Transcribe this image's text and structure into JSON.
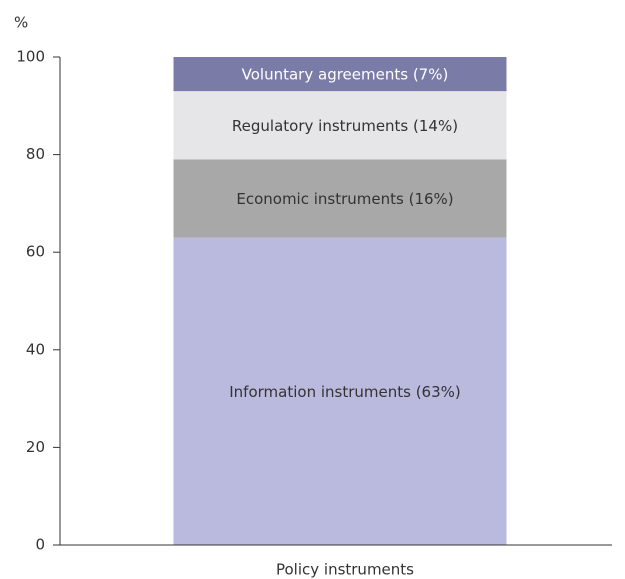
{
  "chart_data": {
    "type": "stacked_bar",
    "y_label": "%",
    "categories": [
      "Policy instruments"
    ],
    "series": [
      {
        "color": "#babade",
        "values": [
          63
        ],
        "value_labels": [
          "Information instruments (63%)"
        ],
        "label_color": "#333333"
      },
      {
        "color": "#a8a8a8",
        "values": [
          16
        ],
        "value_labels": [
          "Economic instruments (16%)"
        ],
        "label_color": "#333333"
      },
      {
        "color": "#e6e6e8",
        "values": [
          14
        ],
        "value_labels": [
          "Regulatory instruments (14%)"
        ],
        "label_color": "#333333"
      },
      {
        "color": "#7b7ba8",
        "values": [
          7
        ],
        "value_labels": [
          "Voluntary agreements (7%)"
        ],
        "label_color": "#ffffff"
      }
    ],
    "ylim": [
      0,
      100
    ],
    "yticks": [
      0,
      20,
      40,
      60,
      80,
      100
    ],
    "grid": false
  }
}
